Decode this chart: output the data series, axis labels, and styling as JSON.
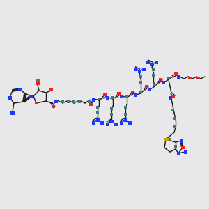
{
  "background_color": "#e8e8ea",
  "line_color": "#1a1a1a",
  "N_color": "#1a3aff",
  "O_color": "#ff1a1a",
  "S_color": "#c8a800",
  "C_color": "#4a7878",
  "lw": 1.0,
  "figsize": [
    3.0,
    3.0
  ],
  "dpi": 100
}
